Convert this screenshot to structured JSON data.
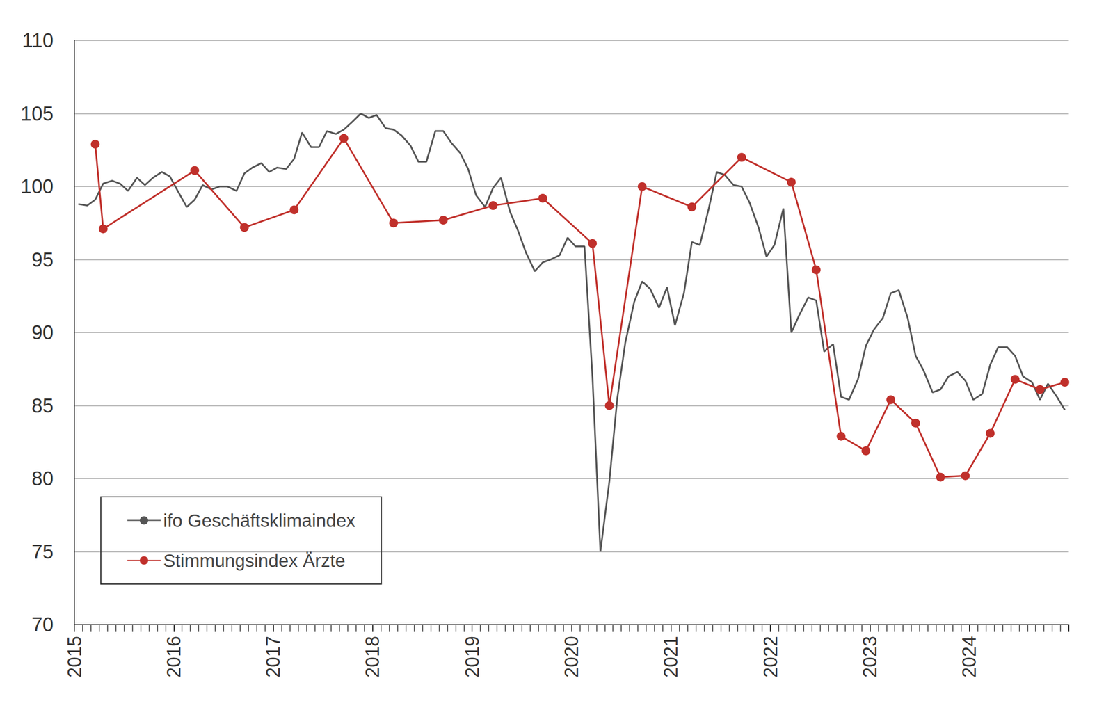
{
  "chart_data": {
    "type": "line",
    "xlim": [
      2015,
      2025
    ],
    "xticks": [
      2015,
      2016,
      2017,
      2018,
      2019,
      2020,
      2021,
      2022,
      2023,
      2024
    ],
    "ylim": [
      70,
      110
    ],
    "yticks": [
      70,
      75,
      80,
      85,
      90,
      95,
      100,
      105,
      110
    ],
    "grid": true,
    "legend": "lower left",
    "series": [
      {
        "name": "ifo Geschäftsklimaindex",
        "color": "#555555",
        "marker": "none",
        "x": [
          2015.04,
          2015.13,
          2015.21,
          2015.29,
          2015.38,
          2015.46,
          2015.54,
          2015.63,
          2015.71,
          2015.79,
          2015.88,
          2015.96,
          2016.04,
          2016.13,
          2016.21,
          2016.29,
          2016.38,
          2016.46,
          2016.54,
          2016.63,
          2016.71,
          2016.79,
          2016.88,
          2016.96,
          2017.04,
          2017.13,
          2017.21,
          2017.29,
          2017.38,
          2017.46,
          2017.54,
          2017.63,
          2017.71,
          2017.79,
          2017.88,
          2017.96,
          2018.04,
          2018.13,
          2018.21,
          2018.29,
          2018.38,
          2018.46,
          2018.54,
          2018.63,
          2018.71,
          2018.79,
          2018.88,
          2018.96,
          2019.04,
          2019.13,
          2019.21,
          2019.29,
          2019.38,
          2019.46,
          2019.54,
          2019.63,
          2019.71,
          2019.79,
          2019.88,
          2019.96,
          2020.04,
          2020.13,
          2020.21,
          2020.29,
          2020.38,
          2020.46,
          2020.54,
          2020.63,
          2020.71,
          2020.79,
          2020.88,
          2020.96,
          2021.04,
          2021.13,
          2021.21,
          2021.29,
          2021.38,
          2021.46,
          2021.54,
          2021.63,
          2021.71,
          2021.79,
          2021.88,
          2021.96,
          2022.04,
          2022.13,
          2022.21,
          2022.29,
          2022.38,
          2022.46,
          2022.54,
          2022.63,
          2022.71,
          2022.79,
          2022.88,
          2022.96,
          2023.04,
          2023.13,
          2023.21,
          2023.29,
          2023.38,
          2023.46,
          2023.54,
          2023.63,
          2023.71,
          2023.79,
          2023.88,
          2023.96,
          2024.04,
          2024.13,
          2024.21,
          2024.29,
          2024.38,
          2024.46,
          2024.54,
          2024.63,
          2024.71,
          2024.79,
          2024.88,
          2024.96
        ],
        "values": [
          98.8,
          98.7,
          99.1,
          100.2,
          100.4,
          100.2,
          99.7,
          100.6,
          100.1,
          100.6,
          101.0,
          100.7,
          99.7,
          98.6,
          99.1,
          100.1,
          99.8,
          100.0,
          100.0,
          99.7,
          100.9,
          101.3,
          101.6,
          101.0,
          101.3,
          101.2,
          101.9,
          103.7,
          102.7,
          102.7,
          103.8,
          103.6,
          103.9,
          104.4,
          105.0,
          104.7,
          104.9,
          104.0,
          103.9,
          103.5,
          102.8,
          101.7,
          101.7,
          103.8,
          103.8,
          103.0,
          102.3,
          101.2,
          99.4,
          98.6,
          99.9,
          100.6,
          98.3,
          97.0,
          95.5,
          94.2,
          94.8,
          95.0,
          95.3,
          96.5,
          95.9,
          95.9,
          87.0,
          75.0,
          79.8,
          85.5,
          89.3,
          92.1,
          93.5,
          93.0,
          91.7,
          93.1,
          90.5,
          92.7,
          96.2,
          96.0,
          98.5,
          101.0,
          100.8,
          100.1,
          100.0,
          98.9,
          97.2,
          95.2,
          96.0,
          98.5,
          90.0,
          91.2,
          92.4,
          92.2,
          88.7,
          89.2,
          85.6,
          85.4,
          86.8,
          89.1,
          90.2,
          91.0,
          92.7,
          92.9,
          91.0,
          88.4,
          87.4,
          85.9,
          86.1,
          87.0,
          87.3,
          86.7,
          85.4,
          85.8,
          87.8,
          89.0,
          89.0,
          88.4,
          87.0,
          86.6,
          85.4,
          86.5,
          85.6,
          84.7
        ]
      },
      {
        "name": "Stimmungsindex Ärzte",
        "color": "#c0302b",
        "marker": "circle",
        "x": [
          2015.21,
          2015.29,
          2016.21,
          2016.71,
          2017.21,
          2017.71,
          2018.21,
          2018.71,
          2019.21,
          2019.71,
          2020.21,
          2020.38,
          2020.71,
          2021.21,
          2021.71,
          2022.21,
          2022.46,
          2022.71,
          2022.96,
          2023.21,
          2023.46,
          2023.71,
          2023.96,
          2024.21,
          2024.46,
          2024.71,
          2024.96
        ],
        "values": [
          102.9,
          97.1,
          101.1,
          97.2,
          98.4,
          103.3,
          97.5,
          97.7,
          98.7,
          99.2,
          96.1,
          85.0,
          100.0,
          98.6,
          102.0,
          100.3,
          94.3,
          82.9,
          81.9,
          85.4,
          83.8,
          80.1,
          80.2,
          83.1,
          86.8,
          86.1,
          86.6
        ]
      }
    ]
  }
}
